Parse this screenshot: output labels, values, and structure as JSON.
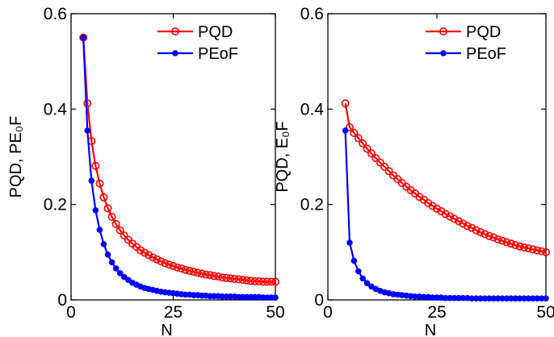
{
  "colors": {
    "pqd": "#ff0000",
    "peof": "#0000ff",
    "axis": "#000000"
  },
  "chart_data": [
    {
      "type": "line",
      "xlabel": "N",
      "ylabel": "PQD, PE₀F",
      "xlim": [
        0,
        50
      ],
      "ylim": [
        0,
        0.6
      ],
      "xticks": [
        "0",
        "25",
        "50"
      ],
      "yticks": [
        "0",
        "0.2",
        "0.4",
        "0.6"
      ],
      "legend": "top-right",
      "x": [
        3,
        4,
        5,
        6,
        7,
        8,
        9,
        10,
        11,
        12,
        13,
        14,
        15,
        16,
        17,
        18,
        19,
        20,
        21,
        22,
        23,
        24,
        25,
        26,
        27,
        28,
        29,
        30,
        31,
        32,
        33,
        34,
        35,
        36,
        37,
        38,
        39,
        40,
        41,
        42,
        43,
        44,
        45,
        46,
        47,
        48,
        49,
        50
      ],
      "series": [
        {
          "name": "PQD",
          "marker": "circle",
          "color": "#ff0000",
          "values": [
            0.55,
            0.412,
            0.333,
            0.281,
            0.244,
            0.215,
            0.192,
            0.174,
            0.159,
            0.146,
            0.135,
            0.126,
            0.118,
            0.111,
            0.104,
            0.099,
            0.094,
            0.089,
            0.085,
            0.081,
            0.077,
            0.074,
            0.071,
            0.068,
            0.066,
            0.063,
            0.061,
            0.059,
            0.057,
            0.055,
            0.053,
            0.052,
            0.05,
            0.049,
            0.047,
            0.046,
            0.045,
            0.044,
            0.043,
            0.042,
            0.041,
            0.04,
            0.039,
            0.039,
            0.038,
            0.038,
            0.038,
            0.038
          ]
        },
        {
          "name": "PEoF",
          "marker": "dot",
          "color": "#0000ff",
          "values": [
            0.55,
            0.355,
            0.25,
            0.188,
            0.147,
            0.117,
            0.095,
            0.079,
            0.066,
            0.056,
            0.048,
            0.042,
            0.036,
            0.032,
            0.028,
            0.025,
            0.023,
            0.021,
            0.019,
            0.017,
            0.016,
            0.015,
            0.014,
            0.013,
            0.012,
            0.011,
            0.011,
            0.01,
            0.01,
            0.009,
            0.009,
            0.008,
            0.008,
            0.008,
            0.007,
            0.007,
            0.007,
            0.007,
            0.006,
            0.006,
            0.006,
            0.006,
            0.006,
            0.006,
            0.005,
            0.005,
            0.005,
            0.005
          ]
        }
      ]
    },
    {
      "type": "line",
      "xlabel": "N",
      "ylabel": "PQD, E₀F",
      "xlim": [
        0,
        50
      ],
      "ylim": [
        0,
        0.6
      ],
      "xticks": [
        "0",
        "25",
        "50"
      ],
      "yticks": [
        "0",
        "0.2",
        "0.4",
        "0.6"
      ],
      "legend": "top-right",
      "x": [
        4,
        5,
        6,
        7,
        8,
        9,
        10,
        11,
        12,
        13,
        14,
        15,
        16,
        17,
        18,
        19,
        20,
        21,
        22,
        23,
        24,
        25,
        26,
        27,
        28,
        29,
        30,
        31,
        32,
        33,
        34,
        35,
        36,
        37,
        38,
        39,
        40,
        41,
        42,
        43,
        44,
        45,
        46,
        47,
        48,
        49,
        50
      ],
      "series": [
        {
          "name": "PQD",
          "marker": "circle",
          "color": "#ff0000",
          "values": [
            0.412,
            0.362,
            0.35,
            0.339,
            0.328,
            0.317,
            0.307,
            0.297,
            0.288,
            0.279,
            0.27,
            0.261,
            0.253,
            0.245,
            0.237,
            0.23,
            0.223,
            0.216,
            0.21,
            0.203,
            0.197,
            0.191,
            0.186,
            0.18,
            0.175,
            0.17,
            0.165,
            0.16,
            0.155,
            0.151,
            0.146,
            0.142,
            0.138,
            0.134,
            0.131,
            0.127,
            0.124,
            0.121,
            0.118,
            0.115,
            0.112,
            0.11,
            0.108,
            0.106,
            0.104,
            0.102,
            0.1
          ]
        },
        {
          "name": "PEoF",
          "marker": "dot",
          "color": "#0000ff",
          "values": [
            0.355,
            0.12,
            0.082,
            0.06,
            0.045,
            0.035,
            0.028,
            0.023,
            0.019,
            0.016,
            0.014,
            0.012,
            0.011,
            0.01,
            0.009,
            0.008,
            0.007,
            0.007,
            0.006,
            0.006,
            0.005,
            0.005,
            0.005,
            0.004,
            0.004,
            0.004,
            0.004,
            0.004,
            0.004,
            0.003,
            0.003,
            0.003,
            0.003,
            0.003,
            0.003,
            0.003,
            0.003,
            0.003,
            0.003,
            0.003,
            0.003,
            0.003,
            0.003,
            0.003,
            0.003,
            0.003,
            0.003
          ]
        }
      ]
    }
  ]
}
